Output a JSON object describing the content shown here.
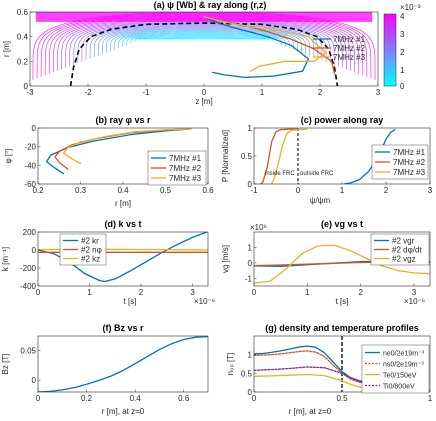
{
  "figure": {
    "colorbar": {
      "exponent": "×10⁻³",
      "ticks": [
        "4",
        "3",
        "2",
        "1",
        "0"
      ],
      "colors": [
        "#00ffff",
        "#ff00ff"
      ]
    }
  },
  "chart_data": [
    {
      "id": "a",
      "type": "contour",
      "title": "(a) ψ [Wb] & ray along (r,z)",
      "xlabel": "z [m]",
      "ylabel": "r [m]",
      "xlim": [
        -3,
        3
      ],
      "ylim": [
        0,
        0.6
      ],
      "xticks": [
        "-3",
        "-2",
        "-1",
        "0",
        "1",
        "2",
        "3"
      ],
      "yticks": [
        "0",
        "0.2",
        "0.4",
        "0.6"
      ],
      "legend_position": "right",
      "series": [
        {
          "name": "7MHz #1",
          "color": "#0072bd",
          "x": [
            0.0,
            0.3,
            0.7,
            1.1,
            1.5,
            1.8,
            1.7,
            1.2,
            0.7,
            0.35,
            0.15
          ],
          "y": [
            0.56,
            0.5,
            0.45,
            0.4,
            0.33,
            0.22,
            0.12,
            0.08,
            0.07,
            0.09,
            0.11
          ]
        },
        {
          "name": "7MHz #2",
          "color": "#d95319",
          "x": [
            0.0,
            0.3,
            0.7,
            1.1,
            1.5,
            1.9,
            2.2,
            2.25
          ],
          "y": [
            0.56,
            0.53,
            0.49,
            0.44,
            0.38,
            0.3,
            0.2,
            0.1
          ]
        },
        {
          "name": "7MHz #3",
          "color": "#edb120",
          "x": [
            0.0,
            0.35,
            0.8,
            1.3,
            1.8,
            2.1,
            1.9,
            1.4,
            0.95,
            0.8
          ],
          "y": [
            0.56,
            0.52,
            0.48,
            0.45,
            0.4,
            0.27,
            0.2,
            0.2,
            0.16,
            0.12
          ]
        }
      ],
      "separatrix": {
        "color": "#000000",
        "z": [
          -2.3,
          -2.25,
          -2.15,
          -1.95,
          -1.6,
          -1.0,
          0.0,
          1.0,
          1.6,
          1.95,
          2.15,
          2.25,
          2.3
        ],
        "r": [
          0.0,
          0.15,
          0.3,
          0.4,
          0.46,
          0.5,
          0.51,
          0.5,
          0.46,
          0.4,
          0.3,
          0.15,
          0.0
        ]
      }
    },
    {
      "id": "b",
      "type": "line",
      "title": "(b) ray φ vs r",
      "xlabel": "r [m]",
      "ylabel": "φ [°]",
      "xlim": [
        0.2,
        0.6
      ],
      "ylim": [
        -60,
        0
      ],
      "xticks": [
        "0.2",
        "0.3",
        "0.4",
        "0.5",
        "0.6"
      ],
      "yticks": [
        "0",
        "-20",
        "-40",
        "-60"
      ],
      "legend_position": "bottom-right",
      "series": [
        {
          "name": "7MHz #1",
          "color": "#0072bd",
          "x": [
            0.56,
            0.5,
            0.42,
            0.33,
            0.27,
            0.23,
            0.22,
            0.24,
            0.26
          ],
          "y": [
            -1,
            -3,
            -7,
            -14,
            -21,
            -29,
            -36,
            -43,
            -49
          ]
        },
        {
          "name": "7MHz #2",
          "color": "#d95319",
          "x": [
            0.56,
            0.5,
            0.42,
            0.34,
            0.28,
            0.25,
            0.24,
            0.25,
            0.27
          ],
          "y": [
            -1,
            -2,
            -5,
            -11,
            -18,
            -25,
            -31,
            -37,
            -44
          ]
        },
        {
          "name": "7MHz #3",
          "color": "#edb120",
          "x": [
            0.56,
            0.5,
            0.43,
            0.36,
            0.3,
            0.27,
            0.26,
            0.28,
            0.3
          ],
          "y": [
            -1,
            -2,
            -4,
            -9,
            -15,
            -21,
            -27,
            -33,
            -38
          ]
        }
      ]
    },
    {
      "id": "c",
      "type": "line",
      "title": "(c) power along ray",
      "xlabel": "ψ/ψm",
      "ylabel": "P [Normalized]",
      "xlim": [
        -1,
        3
      ],
      "ylim": [
        0,
        1
      ],
      "xticks": [
        "-1",
        "0",
        "1",
        "2",
        "3"
      ],
      "yticks": [
        "0",
        "0.5",
        "1"
      ],
      "legend_position": "right",
      "annotations": [
        "inside FRC",
        "outside FRC"
      ],
      "series": [
        {
          "name": "7MHz #1",
          "color": "#0072bd",
          "x": [
            1.05,
            1.2,
            1.4,
            1.6,
            1.8,
            1.9,
            2.0,
            2.1,
            2.2
          ],
          "y": [
            0.0,
            0.02,
            0.08,
            0.22,
            0.45,
            0.62,
            0.8,
            0.92,
            0.97
          ]
        },
        {
          "name": "7MHz #2",
          "color": "#d95319",
          "x": [
            -0.85,
            -0.8,
            -0.7,
            -0.6,
            -0.5,
            -0.4,
            -0.2,
            0.0
          ],
          "y": [
            0.0,
            0.03,
            0.3,
            0.75,
            0.93,
            0.97,
            0.98,
            0.98
          ]
        },
        {
          "name": "7MHz #3",
          "color": "#edb120",
          "x": [
            -0.6,
            -0.55,
            -0.45,
            -0.35,
            -0.25,
            -0.15,
            0.0,
            0.2
          ],
          "y": [
            0.0,
            0.08,
            0.35,
            0.7,
            0.9,
            0.96,
            0.97,
            0.98
          ]
        }
      ]
    },
    {
      "id": "d",
      "type": "line",
      "title": "(d) k vs t",
      "xlabel": "t [s]",
      "ylabel": "k [m⁻¹]",
      "x_exponent": "×10⁻⁶",
      "xlim": [
        0,
        3.3
      ],
      "ylim": [
        -400,
        200
      ],
      "xticks": [
        "0",
        "1",
        "2",
        "3"
      ],
      "yticks": [
        "200",
        "0",
        "-200",
        "-400"
      ],
      "legend_position": "top-left",
      "series": [
        {
          "name": "#2 kr",
          "color": "#0072bd",
          "x": [
            0,
            0.3,
            0.6,
            0.9,
            1.2,
            1.3,
            1.5,
            1.8,
            2.1,
            2.4,
            2.7,
            3.0,
            3.3
          ],
          "y": [
            0,
            -40,
            -130,
            -260,
            -340,
            -350,
            -320,
            -230,
            -130,
            -30,
            60,
            140,
            205
          ]
        },
        {
          "name": "#2 nφ",
          "color": "#d95319",
          "x": [
            0,
            3.3
          ],
          "y": [
            -25,
            -25
          ]
        },
        {
          "name": "#2 kz",
          "color": "#edb120",
          "x": [
            0,
            0.5,
            1.0,
            1.5,
            2.0,
            2.5,
            3.0,
            3.3
          ],
          "y": [
            5,
            8,
            10,
            8,
            6,
            4,
            2,
            0
          ]
        }
      ]
    },
    {
      "id": "e",
      "type": "line",
      "title": "(e) vg vs t",
      "xlabel": "t [s]",
      "ylabel": "vg [m/s]",
      "y_exponent": "×10⁶",
      "x_exponent": "×10⁻⁶",
      "xlim": [
        0,
        3.3
      ],
      "ylim": [
        -1.5,
        2
      ],
      "xticks": [
        "0",
        "1",
        "2",
        "3"
      ],
      "yticks": [
        "1",
        "0",
        "-1"
      ],
      "legend_position": "top-right",
      "series": [
        {
          "name": "#2 vgr",
          "color": "#0072bd",
          "x": [
            0,
            0.5,
            1.0,
            1.5,
            2.0,
            2.5,
            3.0,
            3.3
          ],
          "y": [
            -0.2,
            -0.22,
            -0.12,
            -0.02,
            0.08,
            0.12,
            0.08,
            0.02
          ]
        },
        {
          "name": "#2 dφ/dt",
          "color": "#d95319",
          "x": [
            0,
            0.5,
            1.0,
            1.5,
            2.0,
            2.5,
            3.0,
            3.3
          ],
          "y": [
            -0.18,
            -0.14,
            -0.08,
            -0.03,
            0.02,
            0.05,
            0.06,
            0.06
          ]
        },
        {
          "name": "#2 vgz",
          "color": "#edb120",
          "x": [
            0,
            0.3,
            0.6,
            0.9,
            1.2,
            1.5,
            1.8,
            2.1,
            2.4,
            2.7,
            3.0,
            3.3
          ],
          "y": [
            -1.3,
            -1.2,
            -0.4,
            0.6,
            1.1,
            1.15,
            0.8,
            0.3,
            -0.2,
            -0.5,
            -0.65,
            -0.7
          ]
        }
      ]
    },
    {
      "id": "f",
      "type": "line",
      "title": "(f) Bz vs r",
      "xlabel": "r [m], at z=0",
      "ylabel": "Bz [T]",
      "xlim": [
        0,
        0.7
      ],
      "ylim": [
        -0.02,
        0.075
      ],
      "xticks": [
        "0",
        "0.2",
        "0.4",
        "0.6"
      ],
      "yticks": [
        "0.05",
        "0"
      ],
      "series": [
        {
          "color": "#0072bd",
          "x": [
            0,
            0.05,
            0.1,
            0.15,
            0.2,
            0.25,
            0.3,
            0.35,
            0.4,
            0.45,
            0.5,
            0.55,
            0.6,
            0.65,
            0.7
          ],
          "y": [
            -0.02,
            -0.019,
            -0.0165,
            -0.0125,
            -0.007,
            -0.0005,
            0.007,
            0.0165,
            0.028,
            0.04,
            0.052,
            0.062,
            0.069,
            0.073,
            0.074
          ]
        }
      ]
    },
    {
      "id": "g",
      "type": "line",
      "title": "(g) density and temperature profiles",
      "xlabel": "r [m], at z=0",
      "ylabel": "n₀₀ [T]",
      "xlim": [
        0,
        1
      ],
      "ylim": [
        0,
        1.5
      ],
      "xticks": [
        "0",
        "0.5",
        "1"
      ],
      "yticks": [
        "1",
        "0.5",
        "0"
      ],
      "legend_position": "right",
      "separatrix_r": 0.5,
      "series": [
        {
          "name": "ne0/2e19m⁻³",
          "color": "#0072bd",
          "x": [
            0,
            0.05,
            0.1,
            0.15,
            0.2,
            0.25,
            0.3,
            0.35,
            0.4,
            0.45,
            0.5,
            0.55,
            0.6,
            0.62
          ],
          "y": [
            1.02,
            1.03,
            1.06,
            1.1,
            1.15,
            1.2,
            1.23,
            1.2,
            1.05,
            0.8,
            0.55,
            0.38,
            0.3,
            0.28
          ]
        },
        {
          "name": "ns0/2e19m⁻³",
          "color": "#d95319",
          "x": [
            0,
            0.05,
            0.1,
            0.15,
            0.2,
            0.25,
            0.3,
            0.35,
            0.4,
            0.45,
            0.5,
            0.55,
            0.6,
            0.62
          ],
          "y": [
            0.98,
            0.99,
            1.0,
            1.02,
            1.05,
            1.08,
            1.1,
            1.07,
            0.95,
            0.72,
            0.5,
            0.34,
            0.26,
            0.24
          ]
        },
        {
          "name": "Te0/150eV",
          "color": "#edb120",
          "x": [
            0,
            0.1,
            0.2,
            0.3,
            0.4,
            0.5,
            0.55,
            0.6,
            0.62
          ],
          "y": [
            0.42,
            0.43,
            0.45,
            0.47,
            0.44,
            0.3,
            0.2,
            0.13,
            0.12
          ]
        },
        {
          "name": "Ti0/800eV",
          "color": "#7e2f8e",
          "x": [
            0,
            0.1,
            0.2,
            0.3,
            0.4,
            0.5,
            0.55,
            0.6,
            0.62
          ],
          "y": [
            0.58,
            0.6,
            0.63,
            0.67,
            0.65,
            0.5,
            0.38,
            0.28,
            0.25
          ]
        }
      ]
    }
  ]
}
